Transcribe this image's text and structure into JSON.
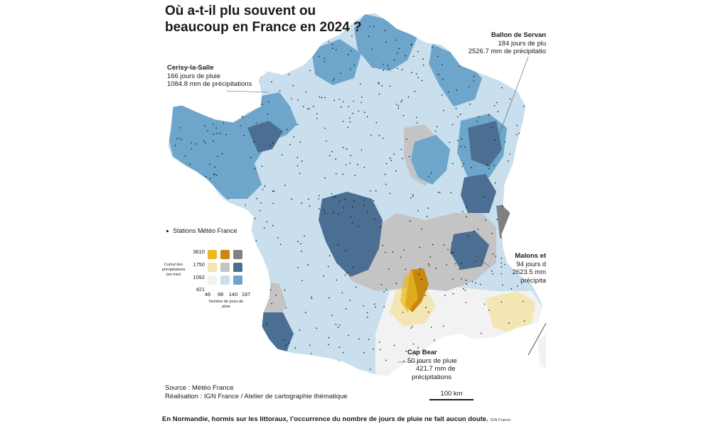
{
  "title": {
    "line1": "Où a-t-il plu souvent ou",
    "line2": "beaucoup en France en 2024 ?"
  },
  "annotations": {
    "cerisy": {
      "name": "Cerisy-la-Salle",
      "line1": "166 jours de pluie",
      "line2": "1084.8 mm de précipitations"
    },
    "ballon": {
      "name": "Ballon de Servan",
      "line1": "184 jours de plu",
      "line2": "2526.7 mm de précipitatio"
    },
    "malons": {
      "name": "Malons et",
      "line1": "94 jours d",
      "line2": "2623.5 mm",
      "line3": "précipita"
    },
    "capbear": {
      "name": "Cap Bear",
      "line1": "50 jours de pluie",
      "line2": "421.7 mm de",
      "line3": "précipitations"
    }
  },
  "legend": {
    "stations_label": "Stations Météo France",
    "y_title": "Cumul des précipitations (en mm)",
    "y_ticks": [
      "3610",
      "1750",
      "1092",
      "421"
    ],
    "x_title": "Nombre de jours de pluie",
    "x_ticks": [
      "46",
      "98",
      "140",
      "187"
    ],
    "colors": [
      [
        "#e9b923",
        "#c8880f",
        "#808080"
      ],
      [
        "#f3e6b4",
        "#c4c4c4",
        "#4a6f92"
      ],
      [
        "#f2f2f2",
        "#c9dfee",
        "#6ea6cb"
      ]
    ]
  },
  "source": {
    "line1": "Source : Météo France",
    "line2": "Réalisation : IGN France / Atelier de cartographie thématique"
  },
  "scale": {
    "label": "100 km"
  },
  "caption": {
    "text": "En Normandie, hormis sur les littoraux, l’occurrence du nombre de jours de pluie ne fait aucun doute.",
    "credit": "IGN France"
  },
  "palette": {
    "light_blue": "#c9dfee",
    "mid_blue": "#6ea6cb",
    "dark_blue": "#4a6f92",
    "grey": "#c4c4c4",
    "dark_grey": "#808080",
    "light_yellow": "#f3e6b4",
    "yellow": "#e9b923",
    "orange": "#c8880f",
    "white_zone": "#f2f2f2"
  }
}
